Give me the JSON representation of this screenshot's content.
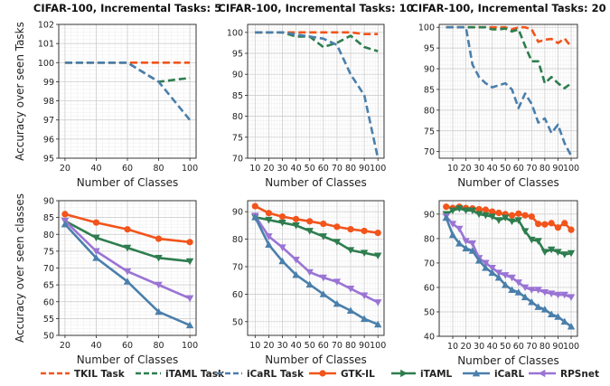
{
  "colors": {
    "TKIL": "#f2541b",
    "iTAML": "#2e7d4e",
    "iCaRL": "#4a7fab",
    "GTK-IL": "#f2541b",
    "RPSnet": "#9a74d4"
  },
  "legend": [
    {
      "label": "TKIL Task",
      "style": "dashed",
      "color_key": "TKIL",
      "marker": "none"
    },
    {
      "label": "iTAML Task",
      "style": "dashed",
      "color_key": "iTAML",
      "marker": "none"
    },
    {
      "label": "iCaRL Task",
      "style": "dashed",
      "color_key": "iCaRL",
      "marker": "none"
    },
    {
      "label": "GTK-IL",
      "style": "solid",
      "color_key": "GTK-IL",
      "marker": "circle"
    },
    {
      "label": "iTAML",
      "style": "solid",
      "color_key": "iTAML",
      "marker": "triangle-right"
    },
    {
      "label": "iCaRL",
      "style": "solid",
      "color_key": "iCaRL",
      "marker": "triangle-up"
    },
    {
      "label": "RPSnet",
      "style": "solid",
      "color_key": "RPSnet",
      "marker": "triangle-left"
    }
  ],
  "chart_data": [
    {
      "type": "line",
      "title": "CIFAR-100, Incremental Tasks: 5",
      "xlabel": "Number of Classes",
      "ylabel": "Accuracy over seen Tasks",
      "xlim": [
        16,
        104
      ],
      "ylim": [
        95,
        102
      ],
      "xticks": [
        20,
        40,
        60,
        80,
        100
      ],
      "yticks": [
        95,
        96,
        97,
        98,
        99,
        100,
        101,
        102
      ],
      "grid": true,
      "x": [
        20,
        40,
        60,
        80,
        100
      ],
      "series": [
        {
          "name": "TKIL Task",
          "color_key": "TKIL",
          "style": "dashed",
          "marker": "none",
          "values": [
            100,
            100,
            100,
            100,
            100
          ]
        },
        {
          "name": "iTAML Task",
          "color_key": "iTAML",
          "style": "dashed",
          "marker": "none",
          "values": [
            100,
            100,
            100,
            99,
            99.2
          ]
        },
        {
          "name": "iCaRL Task",
          "color_key": "iCaRL",
          "style": "dashed",
          "marker": "none",
          "values": [
            100,
            100,
            100,
            99,
            97
          ]
        }
      ]
    },
    {
      "type": "line",
      "title": "CIFAR-100, Incremental Tasks: 10",
      "xlabel": "Number of Classes",
      "ylabel": "",
      "xlim": [
        4.5,
        104.5
      ],
      "ylim": [
        70,
        101.9
      ],
      "xticks": [
        10,
        20,
        30,
        40,
        50,
        60,
        70,
        80,
        90,
        100
      ],
      "yticks": [
        70,
        75,
        80,
        85,
        90,
        95,
        100
      ],
      "grid": true,
      "x": [
        10,
        20,
        30,
        40,
        50,
        60,
        70,
        80,
        90,
        100
      ],
      "series": [
        {
          "name": "TKIL Task",
          "color_key": "TKIL",
          "style": "dashed",
          "marker": "none",
          "values": [
            100,
            100,
            100,
            100,
            100,
            100,
            100,
            100,
            99.6,
            99.6
          ]
        },
        {
          "name": "iTAML Task",
          "color_key": "iTAML",
          "style": "dashed",
          "marker": "none",
          "values": [
            100,
            100,
            100,
            99,
            99,
            96.5,
            97.5,
            99.2,
            96.5,
            95.5
          ]
        },
        {
          "name": "iCaRL Task",
          "color_key": "iCaRL",
          "style": "dashed",
          "marker": "none",
          "values": [
            100,
            100,
            100,
            99.5,
            99,
            98.5,
            97,
            90,
            85,
            70
          ]
        }
      ]
    },
    {
      "type": "line",
      "title": "CIFAR-100, Incremental Tasks: 20",
      "xlabel": "Number of Classes",
      "ylabel": "",
      "xlim": [
        -0.3,
        104.8
      ],
      "ylim": [
        68.4,
        100.7
      ],
      "xticks": [
        10,
        20,
        30,
        40,
        50,
        60,
        70,
        80,
        90,
        100
      ],
      "yticks": [
        70,
        75,
        80,
        85,
        90,
        95,
        100
      ],
      "grid": true,
      "x": [
        5,
        10,
        15,
        20,
        25,
        30,
        35,
        40,
        45,
        50,
        55,
        60,
        65,
        70,
        75,
        80,
        85,
        90,
        95,
        100
      ],
      "series": [
        {
          "name": "TKIL Task",
          "color_key": "TKIL",
          "style": "dashed",
          "marker": "none",
          "values": [
            100,
            100,
            100,
            100,
            100,
            100,
            100,
            100,
            100,
            100,
            99.5,
            100,
            100,
            99.5,
            96.5,
            97,
            97.2,
            96.2,
            97.3,
            95.3
          ]
        },
        {
          "name": "iTAML Task",
          "color_key": "iTAML",
          "style": "dashed",
          "marker": "none",
          "values": [
            100,
            100,
            100,
            100,
            100,
            100,
            100,
            99.5,
            99.5,
            99.7,
            99,
            99.5,
            95.5,
            91.8,
            91.8,
            86.5,
            88,
            86.5,
            85.3,
            86.5
          ]
        },
        {
          "name": "iCaRL Task",
          "color_key": "iCaRL",
          "style": "dashed",
          "marker": "none",
          "values": [
            100,
            100,
            100,
            100,
            91,
            88,
            86.5,
            85.5,
            86,
            86.5,
            85,
            80.5,
            84,
            81.5,
            77,
            78,
            74.5,
            76.5,
            72,
            69
          ]
        }
      ]
    },
    {
      "type": "line",
      "title": "",
      "xlabel": "Number of Classes",
      "ylabel": "Accuracy over seen classes",
      "xlim": [
        16,
        104
      ],
      "ylim": [
        50,
        90
      ],
      "xticks": [
        20,
        40,
        60,
        80,
        100
      ],
      "yticks": [
        50,
        55,
        60,
        65,
        70,
        75,
        80,
        85,
        90
      ],
      "grid": true,
      "x": [
        20,
        40,
        60,
        80,
        100
      ],
      "series": [
        {
          "name": "GTK-IL",
          "color_key": "GTK-IL",
          "style": "solid",
          "marker": "circle",
          "values": [
            86,
            83.5,
            81.5,
            78.7,
            77.7
          ]
        },
        {
          "name": "iTAML",
          "color_key": "iTAML",
          "style": "solid",
          "marker": "triangle-down",
          "values": [
            84,
            79,
            76,
            73,
            72
          ]
        },
        {
          "name": "RPSnet",
          "color_key": "RPSnet",
          "style": "solid",
          "marker": "triangle-down",
          "values": [
            84,
            75,
            69,
            65,
            61
          ]
        },
        {
          "name": "iCaRL",
          "color_key": "iCaRL",
          "style": "solid",
          "marker": "triangle-up",
          "values": [
            83,
            73,
            66,
            57,
            53
          ]
        }
      ]
    },
    {
      "type": "line",
      "title": "",
      "xlabel": "Number of Classes",
      "ylabel": "",
      "xlim": [
        4.5,
        104.5
      ],
      "ylim": [
        45,
        94
      ],
      "xticks": [
        10,
        20,
        30,
        40,
        50,
        60,
        70,
        80,
        90,
        100
      ],
      "yticks": [
        50,
        60,
        70,
        80,
        90
      ],
      "grid": true,
      "x": [
        10,
        20,
        30,
        40,
        50,
        60,
        70,
        80,
        90,
        100
      ],
      "series": [
        {
          "name": "GTK-IL",
          "color_key": "GTK-IL",
          "style": "solid",
          "marker": "circle",
          "values": [
            92,
            89.5,
            88.2,
            87.3,
            86.5,
            85.6,
            84.5,
            83.6,
            83,
            82.3
          ]
        },
        {
          "name": "iTAML",
          "color_key": "iTAML",
          "style": "solid",
          "marker": "triangle-down",
          "values": [
            88,
            87,
            86,
            85,
            83,
            81,
            79,
            76,
            75,
            74
          ]
        },
        {
          "name": "RPSnet",
          "color_key": "RPSnet",
          "style": "solid",
          "marker": "triangle-down",
          "values": [
            88.5,
            81,
            77,
            72.5,
            68,
            66,
            64.5,
            62,
            59.5,
            57
          ]
        },
        {
          "name": "iCaRL",
          "color_key": "iCaRL",
          "style": "solid",
          "marker": "triangle-up",
          "values": [
            88,
            78,
            72,
            67,
            63.5,
            60,
            56.5,
            54,
            51,
            49
          ]
        }
      ]
    },
    {
      "type": "line",
      "title": "",
      "xlabel": "Number of Classes",
      "ylabel": "",
      "xlim": [
        -0.3,
        104.8
      ],
      "ylim": [
        40,
        95.5
      ],
      "xticks": [
        10,
        20,
        30,
        40,
        50,
        60,
        70,
        80,
        90,
        100
      ],
      "yticks": [
        40,
        50,
        60,
        70,
        80,
        90
      ],
      "grid": true,
      "x": [
        5,
        10,
        15,
        20,
        25,
        30,
        35,
        40,
        45,
        50,
        55,
        60,
        65,
        70,
        75,
        80,
        85,
        90,
        95,
        100
      ],
      "series": [
        {
          "name": "GTK-IL",
          "color_key": "GTK-IL",
          "style": "solid",
          "marker": "circle",
          "values": [
            93,
            92.5,
            93,
            92.5,
            92.3,
            92,
            91.8,
            91,
            90.5,
            90,
            89.5,
            90.2,
            89.5,
            89,
            86,
            85.8,
            86.3,
            84.5,
            86.3,
            83.6
          ]
        },
        {
          "name": "iTAML",
          "color_key": "iTAML",
          "style": "solid",
          "marker": "triangle-down",
          "values": [
            90,
            91.5,
            92.3,
            91.5,
            91.5,
            90,
            89.5,
            89,
            87.5,
            88.5,
            87,
            87.5,
            83,
            79.5,
            79,
            74.5,
            75.5,
            74.5,
            73.5,
            74
          ]
        },
        {
          "name": "RPSnet",
          "color_key": "RPSnet",
          "style": "solid",
          "marker": "triangle-down",
          "values": [
            89,
            86,
            84,
            79,
            78,
            72,
            70,
            68,
            66,
            65,
            64,
            62,
            60,
            59,
            59,
            58,
            57.5,
            57,
            57,
            56
          ]
        },
        {
          "name": "iCaRL",
          "color_key": "iCaRL",
          "style": "solid",
          "marker": "triangle-up",
          "values": [
            88.5,
            81.5,
            78,
            76,
            75,
            71,
            68,
            66,
            64,
            61,
            59,
            58,
            56,
            54,
            52,
            51,
            49,
            48,
            46,
            44
          ]
        }
      ]
    }
  ]
}
